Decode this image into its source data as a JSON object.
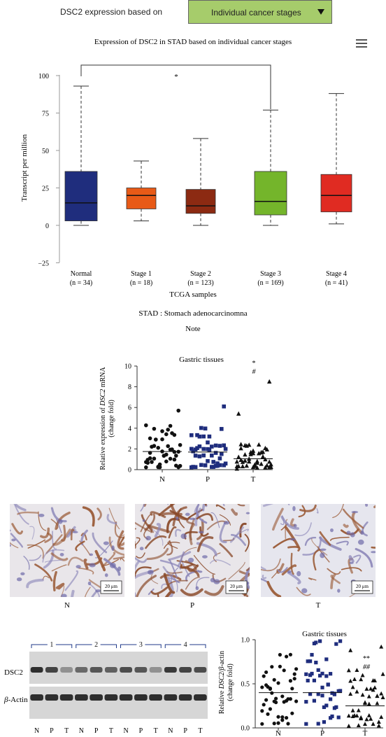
{
  "header": {
    "label": "DSC2 expression based on",
    "dropdown_value": "Individual cancer stages"
  },
  "colors": {
    "normal": "#1f2d7d",
    "stage1": "#e85a17",
    "stage2": "#8c2a12",
    "stage3": "#74b52b",
    "stage4": "#e02b22",
    "dropdown": "#a6cc6b",
    "dots_p": "#1f2d7d"
  },
  "chart_data": [
    {
      "type": "box",
      "title": "Expression of DSC2 in STAD based on individual cancer stages",
      "ylabel": "Transcript per million",
      "xlabel": "TCGA samples",
      "ylim": [
        -25,
        100
      ],
      "yticks": [
        "100",
        "75",
        "50",
        "25",
        "0",
        "−25"
      ],
      "yticks_values": [
        100,
        75,
        50,
        25,
        0,
        -25
      ],
      "significance": "*",
      "significance_between": [
        "Normal",
        "Stage 3"
      ],
      "categories": [
        "Normal",
        "Stage 1",
        "Stage 2",
        "Stage 3",
        "Stage 4"
      ],
      "counts": [
        "(n = 34)",
        "(n = 18)",
        "(n = 123)",
        "(n = 169)",
        "(n = 41)"
      ],
      "boxes": [
        {
          "min": 0,
          "q1": 3,
          "median": 15,
          "q3": 36,
          "max": 93
        },
        {
          "min": 3,
          "q1": 11,
          "median": 20,
          "q3": 25,
          "max": 43
        },
        {
          "min": 0,
          "q1": 8,
          "median": 13,
          "q3": 24,
          "max": 58
        },
        {
          "min": 0,
          "q1": 7,
          "median": 16,
          "q3": 36,
          "max": 77
        },
        {
          "min": 1,
          "q1": 9,
          "median": 20,
          "q3": 34,
          "max": 88
        }
      ],
      "subtitle": "STAD : Stomach adenocarcinomna",
      "note": "Note"
    },
    {
      "type": "scatter",
      "title": "Gastric tissues",
      "ylabel_pre": "Relative expression of ",
      "ylabel_gene": "DSC2",
      "ylabel_post": " mRNA",
      "ylabel2": "(change fold)",
      "ylim": [
        0,
        10
      ],
      "yticks": [
        "0",
        "2",
        "4",
        "6",
        "8",
        "10"
      ],
      "yticks_values": [
        0,
        2,
        4,
        6,
        8,
        10
      ],
      "categories": [
        "N",
        "P",
        "T"
      ],
      "means": [
        1.75,
        1.7,
        1.05
      ],
      "sig_marks": [
        "*",
        "#"
      ]
    },
    {
      "type": "scatter",
      "title": "Gastric tissues",
      "ylabel_pre": "Relative ",
      "ylabel_gene": "DSC2",
      "ylabel_mid": "/",
      "ylabel_beta": "β",
      "ylabel_post": "-actin",
      "ylabel2": "(change fold)",
      "ylim": [
        0,
        1.0
      ],
      "yticks": [
        "0.0",
        "0.5",
        "1.0"
      ],
      "yticks_values": [
        0,
        0.5,
        1.0
      ],
      "categories": [
        "N",
        "P",
        "T"
      ],
      "means": [
        0.4,
        0.4,
        0.25
      ],
      "sig_marks": [
        "**",
        "##"
      ]
    }
  ],
  "ihc": {
    "labels": [
      "N",
      "P",
      "T"
    ],
    "scale_bar": "20 μm"
  },
  "western": {
    "groups": [
      "1",
      "2",
      "3",
      "4"
    ],
    "lanes": [
      "N",
      "P",
      "T",
      "N",
      "P",
      "T",
      "N",
      "P",
      "T",
      "N",
      "P",
      "T"
    ],
    "row_labels": [
      "DSC2",
      "β-Actin"
    ],
    "dsc2_intensity": [
      0.85,
      0.75,
      0.35,
      0.55,
      0.65,
      0.6,
      0.7,
      0.65,
      0.35,
      0.8,
      0.75,
      0.7
    ]
  }
}
